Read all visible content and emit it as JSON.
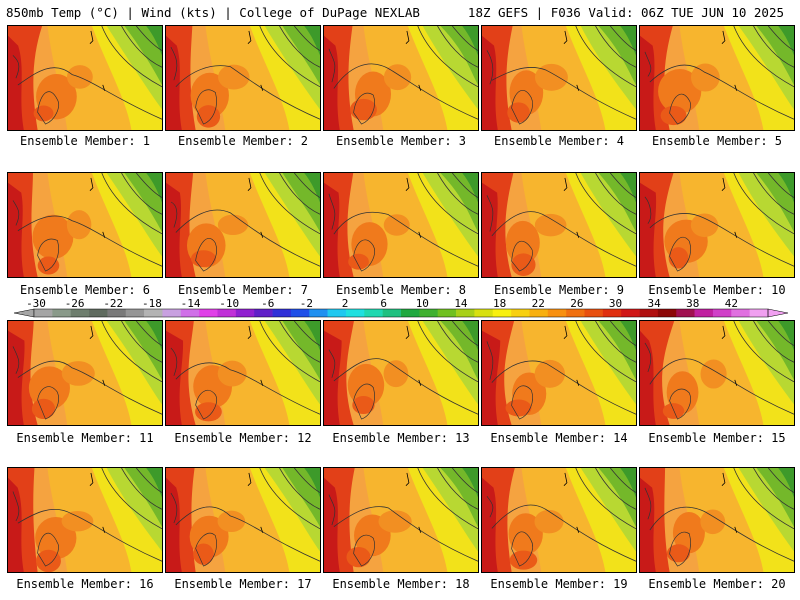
{
  "header": {
    "left_title": "850mb Temp (°C) | Wind (kts) | College of DuPage NEXLAB",
    "right_title": "18Z GEFS | F036 Valid: 06Z TUE JUN 10 2025"
  },
  "member_prefix": "Ensemble Member:",
  "members": [
    {
      "label": "Ensemble Member: 1"
    },
    {
      "label": "Ensemble Member: 2"
    },
    {
      "label": "Ensemble Member: 3"
    },
    {
      "label": "Ensemble Member: 4"
    },
    {
      "label": "Ensemble Member: 5"
    },
    {
      "label": "Ensemble Member: 6"
    },
    {
      "label": "Ensemble Member: 7"
    },
    {
      "label": "Ensemble Member: 8"
    },
    {
      "label": "Ensemble Member: 9"
    },
    {
      "label": "Ensemble Member: 10"
    },
    {
      "label": "Ensemble Member: 11"
    },
    {
      "label": "Ensemble Member: 12"
    },
    {
      "label": "Ensemble Member: 13"
    },
    {
      "label": "Ensemble Member: 14"
    },
    {
      "label": "Ensemble Member: 15"
    },
    {
      "label": "Ensemble Member: 16"
    },
    {
      "label": "Ensemble Member: 17"
    },
    {
      "label": "Ensemble Member: 18"
    },
    {
      "label": "Ensemble Member: 19"
    },
    {
      "label": "Ensemble Member: 20"
    }
  ],
  "colorbar": {
    "tick_labels": [
      "-30",
      "-26",
      "-22",
      "-18",
      "-14",
      "-10",
      "-6",
      "-2",
      "2",
      "6",
      "10",
      "14",
      "18",
      "22",
      "26",
      "30",
      "34",
      "38",
      "42"
    ],
    "colors": [
      "#a5a5a5",
      "#8a9a8a",
      "#6e7e6e",
      "#5f6b5f",
      "#7a7a7a",
      "#969696",
      "#b3b3b3",
      "#c8a0e0",
      "#d070e8",
      "#e040e8",
      "#c030d8",
      "#9020d0",
      "#6020c8",
      "#3030d8",
      "#2050e8",
      "#2090f0",
      "#20c8f0",
      "#20e0e0",
      "#20d8b0",
      "#20c080",
      "#20a840",
      "#40b030",
      "#70c020",
      "#a8d018",
      "#d8e010",
      "#f8f010",
      "#f8d010",
      "#f8b010",
      "#f89010",
      "#f07010",
      "#e85010",
      "#e03010",
      "#d01818",
      "#b01010",
      "#8c0808",
      "#a01050",
      "#c020a0",
      "#d040c8",
      "#e070e0",
      "#f0a0f0"
    ]
  }
}
